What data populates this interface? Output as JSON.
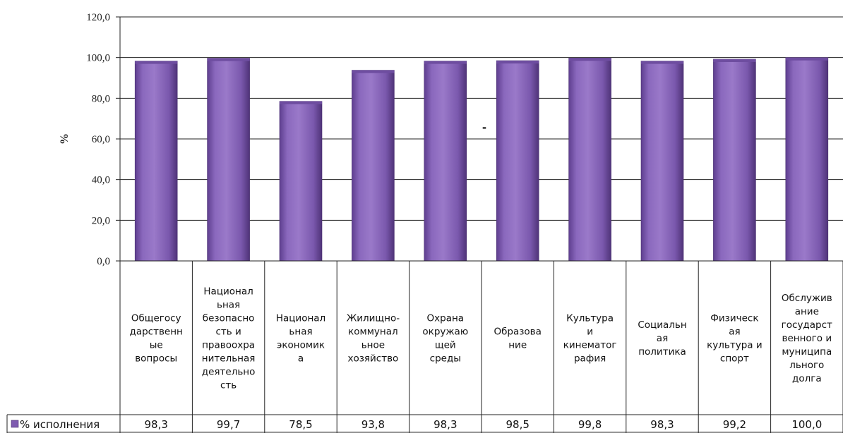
{
  "chart_data": {
    "type": "bar",
    "ylabel": "%",
    "ylim": [
      0,
      120
    ],
    "yticks": [
      "0,0",
      "20,0",
      "40,0",
      "60,0",
      "80,0",
      "100,0",
      "120,0"
    ],
    "grid": true,
    "categories": [
      [
        "Общегосу",
        "дарственн",
        "ые",
        "вопросы"
      ],
      [
        "Национал",
        "ьная",
        "безопасно",
        "сть и",
        "правоохра",
        "нительная",
        "деятельно",
        "сть"
      ],
      [
        "Национал",
        "ьная",
        "экономик",
        "а"
      ],
      [
        "Жилищно-",
        "коммунал",
        "ьное",
        "хозяйство"
      ],
      [
        "Охрана",
        "окружаю",
        "щей",
        "среды"
      ],
      [
        "Образова",
        "ние"
      ],
      [
        "Культура",
        "и",
        "кинематог",
        "рафия"
      ],
      [
        "Социальн",
        "ая",
        "политика"
      ],
      [
        "Физическ",
        "ая",
        "культура и",
        "спорт"
      ],
      [
        "Обслужив",
        "ание",
        "государст",
        "венного и",
        "муниципа",
        "льного",
        "долга"
      ]
    ],
    "series": [
      {
        "name": "% исполнения",
        "color": "#7e5bb0",
        "values": [
          98.3,
          99.7,
          78.5,
          93.8,
          98.3,
          98.5,
          99.8,
          98.3,
          99.2,
          100.0
        ],
        "labels": [
          "98,3",
          "99,7",
          "78,5",
          "93,8",
          "98,3",
          "98,5",
          "99,8",
          "98,3",
          "99,2",
          "100,0"
        ]
      }
    ],
    "annotation": "-",
    "legend": "data-table-left"
  }
}
